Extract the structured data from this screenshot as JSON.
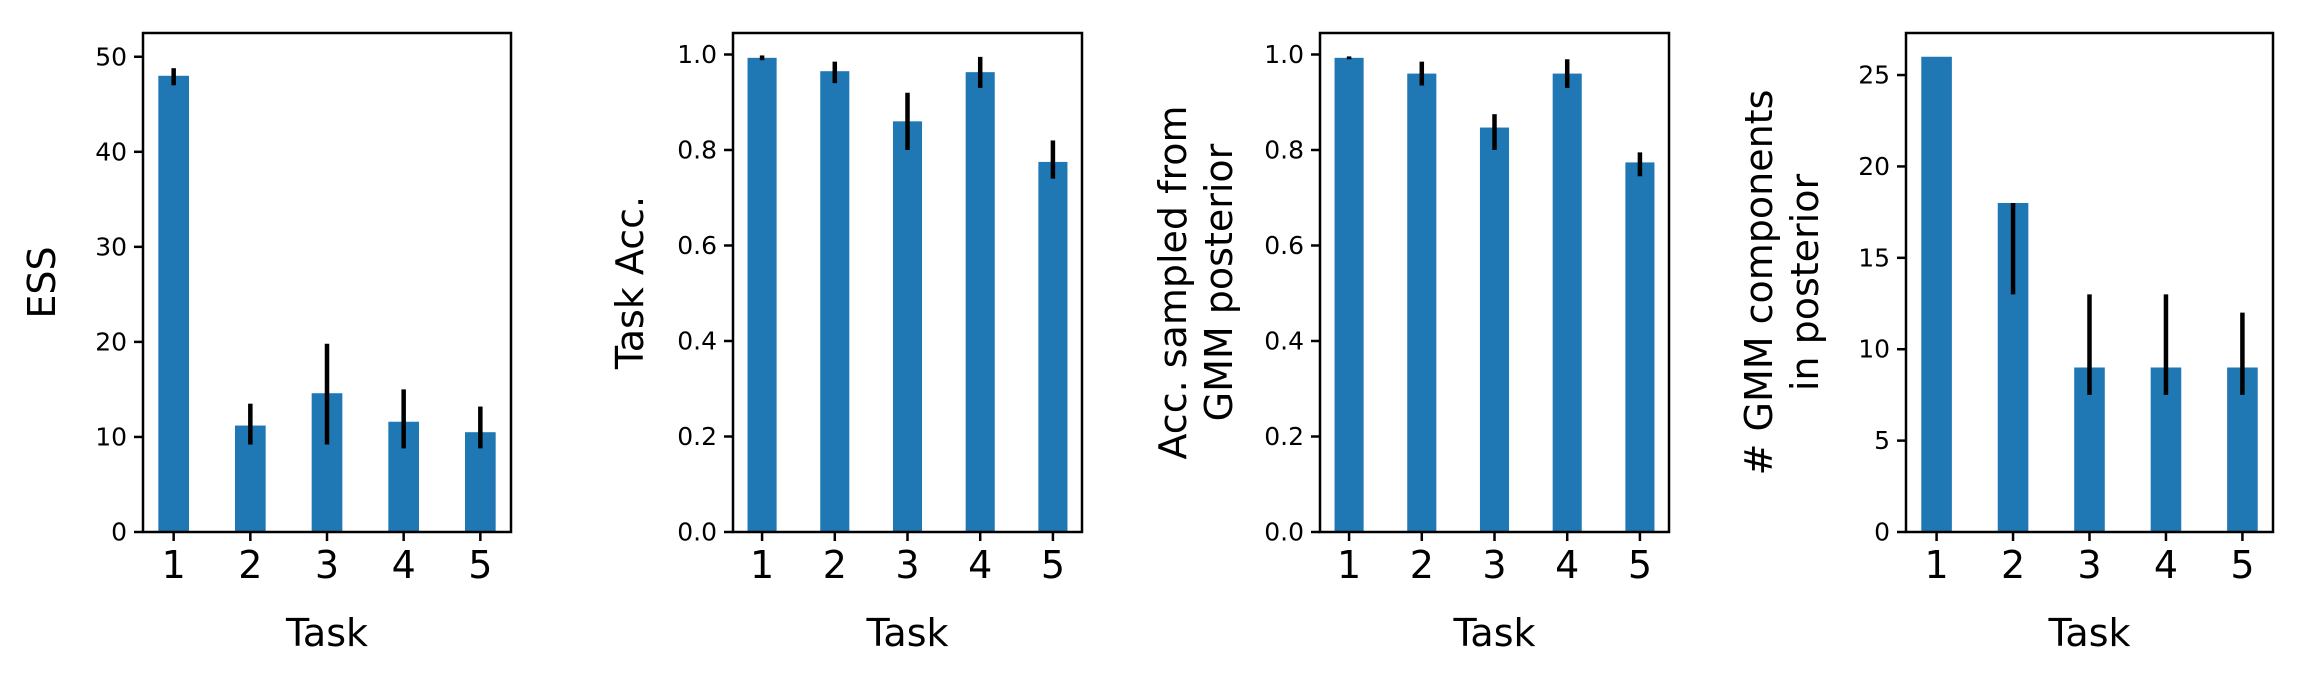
{
  "colors": {
    "bar": "#1f77b4",
    "error_bar": "#000000",
    "axis": "#000000"
  },
  "chart_data": [
    {
      "type": "bar",
      "xlabel": "Task",
      "ylabel": [
        "ESS"
      ],
      "categories": [
        "1",
        "2",
        "3",
        "4",
        "5"
      ],
      "values": [
        48.0,
        11.2,
        14.6,
        11.6,
        10.5
      ],
      "error_low": [
        47.0,
        9.2,
        9.2,
        8.8,
        8.8
      ],
      "error_high": [
        48.8,
        13.5,
        19.8,
        15.0,
        13.2
      ],
      "ylim": [
        0,
        52.5
      ],
      "yticks": [
        0,
        10,
        20,
        30,
        40,
        50
      ],
      "ytick_labels": [
        "0",
        "10",
        "20",
        "30",
        "40",
        "50"
      ]
    },
    {
      "type": "bar",
      "xlabel": "Task",
      "ylabel": [
        "Task Acc."
      ],
      "categories": [
        "1",
        "2",
        "3",
        "4",
        "5"
      ],
      "values": [
        0.993,
        0.965,
        0.86,
        0.963,
        0.775
      ],
      "error_low": [
        0.988,
        0.94,
        0.8,
        0.93,
        0.74
      ],
      "error_high": [
        0.998,
        0.985,
        0.92,
        0.995,
        0.82
      ],
      "ylim": [
        0,
        1.045
      ],
      "yticks": [
        0,
        0.2,
        0.4,
        0.6,
        0.8,
        1.0
      ],
      "ytick_labels": [
        "0.0",
        "0.2",
        "0.4",
        "0.6",
        "0.8",
        "1.0"
      ]
    },
    {
      "type": "bar",
      "xlabel": "Task",
      "ylabel": [
        "Acc. sampled from",
        "GMM posterior"
      ],
      "categories": [
        "1",
        "2",
        "3",
        "4",
        "5"
      ],
      "values": [
        0.993,
        0.96,
        0.847,
        0.96,
        0.774
      ],
      "error_low": [
        0.99,
        0.935,
        0.8,
        0.93,
        0.745
      ],
      "error_high": [
        0.996,
        0.985,
        0.875,
        0.99,
        0.795
      ],
      "ylim": [
        0,
        1.045
      ],
      "yticks": [
        0,
        0.2,
        0.4,
        0.6,
        0.8,
        1.0
      ],
      "ytick_labels": [
        "0.0",
        "0.2",
        "0.4",
        "0.6",
        "0.8",
        "1.0"
      ]
    },
    {
      "type": "bar",
      "xlabel": "Task",
      "ylabel": [
        "# GMM components",
        "in posterior"
      ],
      "categories": [
        "1",
        "2",
        "3",
        "4",
        "5"
      ],
      "values": [
        26,
        18,
        9,
        9,
        9
      ],
      "error_low": [
        26,
        13,
        7.5,
        7.5,
        7.5
      ],
      "error_high": [
        26,
        18,
        13,
        13,
        12
      ],
      "ylim": [
        0,
        27.3
      ],
      "yticks": [
        0,
        5,
        10,
        15,
        20,
        25
      ],
      "ytick_labels": [
        "0",
        "5",
        "10",
        "15",
        "20",
        "25"
      ]
    }
  ]
}
